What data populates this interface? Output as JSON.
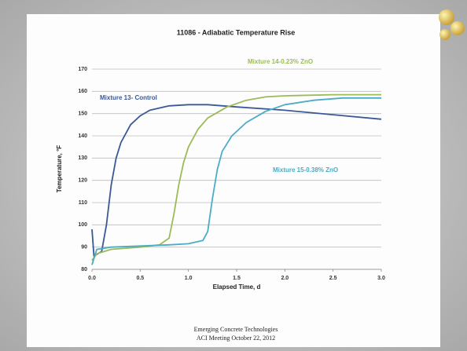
{
  "chart_data": {
    "type": "line",
    "title": "11086 - Adiabatic Temperature Rise",
    "xlabel": "Elapsed Time, d",
    "ylabel": "Temperature, °F",
    "xlim": [
      0,
      3
    ],
    "ylim": [
      80,
      170
    ],
    "xticks": [
      {
        "value": 0,
        "label": "0.0"
      },
      0.5,
      {
        "value": 1,
        "label": "1.0"
      },
      1.5,
      {
        "value": 2,
        "label": "2.0"
      },
      2.5,
      {
        "value": 3,
        "label": "3.0"
      }
    ],
    "yticks": [
      80,
      90,
      100,
      110,
      120,
      130,
      140,
      150,
      160,
      170
    ],
    "grid": true,
    "series": [
      {
        "name": "Mixture 13- Control",
        "color": "#3b5896",
        "x": [
          0,
          0.02,
          0.1,
          0.15,
          0.2,
          0.25,
          0.3,
          0.4,
          0.5,
          0.6,
          0.8,
          1.0,
          1.2,
          1.5,
          2.0,
          2.5,
          3.0
        ],
        "values": [
          98,
          86,
          88,
          100,
          118,
          130,
          137,
          145,
          149,
          151.5,
          153.5,
          154,
          154,
          153,
          151.5,
          149.5,
          147.5
        ]
      },
      {
        "name": "Mixture 14-0.23% ZnO",
        "color": "#9bbb59",
        "x": [
          0,
          0.05,
          0.2,
          0.5,
          0.7,
          0.8,
          0.85,
          0.9,
          0.95,
          1.0,
          1.1,
          1.2,
          1.4,
          1.6,
          1.8,
          2.0,
          2.5,
          3.0
        ],
        "values": [
          84,
          87,
          89,
          90,
          91,
          94,
          105,
          118,
          128,
          135,
          143,
          148,
          153,
          156,
          157.5,
          158,
          158.5,
          158.5
        ]
      },
      {
        "name": "Mixture 15-0.38% ZnO",
        "color": "#4bacc6",
        "x": [
          0,
          0.05,
          0.2,
          0.5,
          0.8,
          1.0,
          1.15,
          1.2,
          1.25,
          1.3,
          1.35,
          1.45,
          1.6,
          1.8,
          2.0,
          2.3,
          2.6,
          3.0
        ],
        "values": [
          82,
          89,
          90,
          90.5,
          91,
          91.5,
          93,
          97,
          112,
          125,
          133,
          140,
          146,
          151,
          154,
          156,
          157,
          157
        ]
      }
    ],
    "footer": [
      "Emerging Concrete Technologies",
      "ACI Meeting October 22, 2012"
    ]
  }
}
